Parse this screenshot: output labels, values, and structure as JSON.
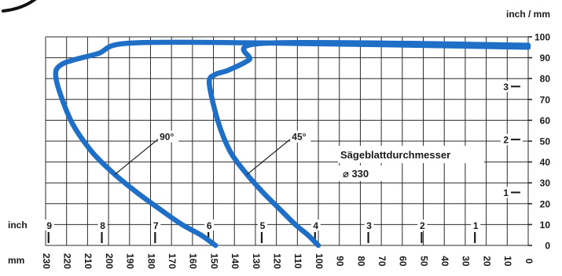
{
  "chart_data": {
    "type": "line",
    "title": "",
    "annotation": {
      "label": "Sägeblattdurchmesser",
      "value_label": "⌀ 330"
    },
    "x_axis": {
      "label": "mm",
      "reversed": true,
      "range": [
        0,
        230
      ],
      "tick_values": [
        230,
        220,
        210,
        200,
        190,
        180,
        170,
        160,
        150,
        140,
        130,
        120,
        110,
        100,
        90,
        80,
        70,
        60,
        50,
        40,
        30,
        20,
        10,
        0
      ],
      "tick_labels": [
        "230",
        "220",
        "210",
        "200",
        "190",
        "180",
        "170",
        "160",
        "150",
        "140",
        "130",
        "120",
        "110",
        "100",
        "90",
        "80",
        "70",
        "60",
        "50",
        "40",
        "30",
        "20",
        "10",
        "0"
      ]
    },
    "x_axis_inch": {
      "label": "inch",
      "ticks": [
        {
          "label": "9",
          "value": 9
        },
        {
          "label": "8",
          "value": 8
        },
        {
          "label": "7",
          "value": 7
        },
        {
          "label": "6",
          "value": 6
        },
        {
          "label": "5",
          "value": 5
        },
        {
          "label": "4",
          "value": 4
        },
        {
          "label": "3",
          "value": 3
        },
        {
          "label": "2",
          "value": 2
        },
        {
          "label": "1",
          "value": 1
        }
      ]
    },
    "y_axis": {
      "label": "inch / mm",
      "range": [
        0,
        100
      ],
      "tick_values": [
        0,
        10,
        20,
        30,
        40,
        50,
        60,
        70,
        80,
        90,
        100
      ],
      "tick_labels": [
        "0",
        "10",
        "20",
        "30",
        "40",
        "50",
        "60",
        "70",
        "80",
        "90",
        "100"
      ]
    },
    "y_axis_inch": {
      "ticks": [
        {
          "label": "1",
          "value": 1
        },
        {
          "label": "2",
          "value": 2
        },
        {
          "label": "3",
          "value": 3
        }
      ]
    },
    "grid": true,
    "series": [
      {
        "name": "90°",
        "color": "#1f6fc6",
        "x": [
          149,
          156,
          165,
          175,
          186,
          197,
          208,
          218,
          225,
          222,
          205,
          190,
          120,
          0
        ],
        "y": [
          0,
          5,
          10,
          17,
          25,
          34,
          45,
          60,
          80,
          87,
          92,
          97,
          97,
          95
        ]
      },
      {
        "name": "45°",
        "color": "#1f6fc6",
        "x": [
          100,
          105,
          111,
          118,
          126,
          134,
          142,
          148,
          152,
          149,
          143,
          133,
          125,
          0
        ],
        "y": [
          0,
          5,
          10,
          17,
          25,
          34,
          45,
          60,
          78,
          82,
          84,
          89,
          97,
          96
        ]
      }
    ]
  }
}
